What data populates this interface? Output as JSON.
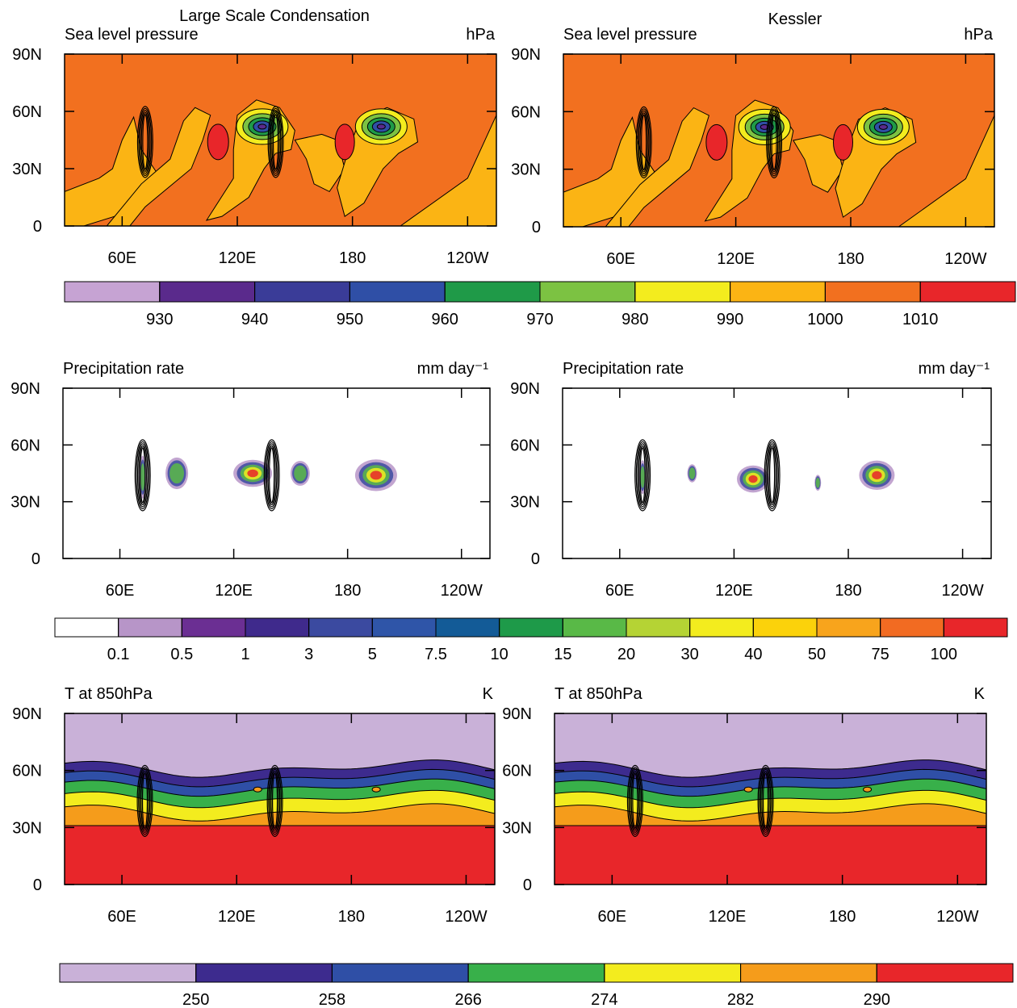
{
  "chart_data": [
    {
      "type": "contour",
      "title": "Large Scale Condensation",
      "subtitle": "Sea level pressure",
      "unit": "hPa",
      "xlim": [
        30,
        255
      ],
      "ylim": [
        0,
        90
      ],
      "xticks": [
        {
          "value": 60,
          "label": "60E"
        },
        {
          "value": 120,
          "label": "120E"
        },
        180,
        {
          "value": 240,
          "label": "120W"
        }
      ],
      "yticks": [
        0,
        {
          "value": 30,
          "label": "30N"
        },
        {
          "value": 60,
          "label": "60N"
        },
        {
          "value": 90,
          "label": "90N"
        }
      ]
    },
    {
      "type": "contour",
      "title": "Kessler",
      "subtitle": "Sea level pressure",
      "unit": "hPa",
      "xlim": [
        30,
        255
      ],
      "ylim": [
        0,
        90
      ],
      "xticks": [
        {
          "value": 60,
          "label": "60E"
        },
        {
          "value": 120,
          "label": "120E"
        },
        180,
        {
          "value": 240,
          "label": "120W"
        }
      ],
      "yticks": [
        0,
        {
          "value": 30,
          "label": "30N"
        },
        {
          "value": 60,
          "label": "60N"
        },
        {
          "value": 90,
          "label": "90N"
        }
      ]
    },
    {
      "type": "colorbar",
      "colors": [
        "#c6a3d3",
        "#5a2a8c",
        "#3a3c98",
        "#2f4fa6",
        "#1f9a48",
        "#7cc242",
        "#f3ec1e",
        "#fbb414",
        "#f2701f",
        "#e8262a"
      ],
      "ticks": [
        930,
        940,
        950,
        960,
        970,
        980,
        990,
        1000,
        1010
      ]
    },
    {
      "type": "contour",
      "subtitle": "Precipitation rate",
      "unit": "mm day⁻¹",
      "xlim": [
        30,
        255
      ],
      "ylim": [
        0,
        90
      ],
      "xticks": [
        {
          "value": 60,
          "label": "60E"
        },
        {
          "value": 120,
          "label": "120E"
        },
        180,
        {
          "value": 240,
          "label": "120W"
        }
      ],
      "yticks": [
        0,
        {
          "value": 30,
          "label": "30N"
        },
        {
          "value": 60,
          "label": "60N"
        },
        {
          "value": 90,
          "label": "90N"
        }
      ]
    },
    {
      "type": "contour",
      "subtitle": "Precipitation rate",
      "unit": "mm day⁻¹",
      "xlim": [
        30,
        255
      ],
      "ylim": [
        0,
        90
      ],
      "xticks": [
        {
          "value": 60,
          "label": "60E"
        },
        {
          "value": 120,
          "label": "120E"
        },
        180,
        {
          "value": 240,
          "label": "120W"
        }
      ],
      "yticks": [
        0,
        {
          "value": 30,
          "label": "30N"
        },
        {
          "value": 60,
          "label": "60N"
        },
        {
          "value": 90,
          "label": "90N"
        }
      ]
    },
    {
      "type": "colorbar",
      "colors": [
        "#ffffff",
        "#b795c8",
        "#6b2f93",
        "#3f2a8c",
        "#3b4aa0",
        "#2f55a8",
        "#135b97",
        "#1e9a49",
        "#59b947",
        "#b5d334",
        "#f3ec1e",
        "#fbd20b",
        "#f8a41c",
        "#f26b22",
        "#e8262a"
      ],
      "ticks": [
        0.1,
        0.5,
        1,
        3,
        5,
        7.5,
        10,
        15,
        20,
        30,
        40,
        50,
        75,
        100
      ]
    },
    {
      "type": "contour",
      "subtitle": "T at 850hPa",
      "unit": "K",
      "xlim": [
        30,
        255
      ],
      "ylim": [
        0,
        90
      ],
      "xticks": [
        {
          "value": 60,
          "label": "60E"
        },
        {
          "value": 120,
          "label": "120E"
        },
        180,
        {
          "value": 240,
          "label": "120W"
        }
      ],
      "yticks": [
        0,
        {
          "value": 30,
          "label": "30N"
        },
        {
          "value": 60,
          "label": "60N"
        },
        {
          "value": 90,
          "label": "90N"
        }
      ]
    },
    {
      "type": "contour",
      "subtitle": "T at 850hPa",
      "unit": "K",
      "xlim": [
        30,
        255
      ],
      "ylim": [
        0,
        90
      ],
      "xticks": [
        {
          "value": 60,
          "label": "60E"
        },
        {
          "value": 120,
          "label": "120E"
        },
        180,
        {
          "value": 240,
          "label": "120W"
        }
      ],
      "yticks": [
        0,
        {
          "value": 30,
          "label": "30N"
        },
        {
          "value": 60,
          "label": "60N"
        },
        {
          "value": 90,
          "label": "90N"
        }
      ]
    },
    {
      "type": "colorbar",
      "colors": [
        "#c9b1d8",
        "#3d2b8e",
        "#2f4fa6",
        "#38b04a",
        "#f3ec1e",
        "#f59c1b",
        "#e8262a"
      ],
      "ticks": [
        250,
        258,
        266,
        274,
        282,
        290
      ]
    }
  ]
}
